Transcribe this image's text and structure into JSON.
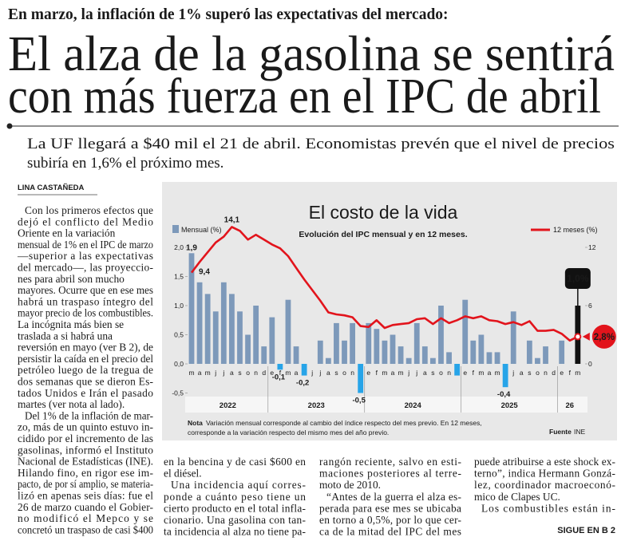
{
  "header": {
    "kicker": "En marzo, la inflación de 1% superó las expectativas del mercado:",
    "headline": [
      "El alza de la gasolina se sentirá",
      "con más fuerza en el IPC de abril"
    ],
    "deck": [
      "La UF llegará a $40 mil el 21 de abril. Economistas prevén que el nivel de precios",
      "subiría en 1,6% el próximo mes."
    ]
  },
  "byline": "LINA CASTAÑEDA",
  "columns": [
    [
      [
        "Con los primeros efectos que",
        "dejó el conflicto del Medio",
        "Oriente en la variación",
        "mensual de 1% en el IPC de marzo",
        "—superior a las expectativas",
        "del mercado—, las proyeccio-",
        "nes para abril son mucho",
        "mayores. Ocurre que en ese mes",
        "habrá un traspaso íntegro del",
        "mayor precio de los combustibles.",
        "La incógnita más bien se",
        "traslada a si habrá una",
        "reversión en mayo (ver B 2), de",
        "persistir la caída en el precio del",
        "petróleo luego de la tregua de",
        "dos semanas que se dieron Es-",
        "tados Unidos e Irán el pasado",
        "martes (ver nota al lado)."
      ],
      [
        "Del 1% de la inflación de mar-",
        "zo, más de un quinto estuvo in-",
        "cidido por el incremento de las",
        "gasolinas, informó el Instituto",
        "Nacional de Estadísticas (INE).",
        "Hilando fino, en rigor ese im-",
        "pacto, de por sí amplio, se materia-",
        "lizó en apenas seis días: fue el",
        "26 de marzo cuando el Gobier-",
        "no modificó el Mepco y se",
        "concretó un traspaso de casi $400"
      ]
    ],
    [
      [
        "en la bencina y de casi $600 en",
        "el diésel."
      ],
      [
        "Una incidencia aquí corres-",
        "ponde a cuánto peso tiene un",
        "cierto producto en el total infla-",
        "cionario. Una gasolina con tan-",
        "ta incidencia al alza no tiene pa-"
      ]
    ],
    [
      [
        "rangón reciente, salvo en esti-",
        "maciones posteriores al terre-",
        "moto de 2010."
      ],
      [
        "“Antes de la guerra el alza es-",
        "perada para ese mes se ubicaba",
        "en torno a 0,5%, por lo que cer-",
        "ca de la mitad del IPC del mes"
      ]
    ],
    [
      [
        "puede atribuirse a este shock ex-",
        "terno”, indica Hermann Gonzá-",
        "lez, coordinador macroeconó-",
        "mico de Clapes UC."
      ],
      [
        "Los combustibles están in-"
      ]
    ]
  ],
  "continued": "SIGUE EN B 2",
  "chart_data": {
    "type": "combo",
    "title": "El costo de la vida",
    "subtitle": "Evolución del IPC mensual y en 12 meses.",
    "categories": [
      "m",
      "a",
      "m",
      "j",
      "j",
      "a",
      "s",
      "o",
      "n",
      "d",
      "e",
      "f",
      "m",
      "a",
      "m",
      "j",
      "j",
      "a",
      "s",
      "o",
      "n",
      "d",
      "e",
      "f",
      "m",
      "a",
      "m",
      "j",
      "j",
      "a",
      "s",
      "o",
      "n",
      "d",
      "e",
      "f",
      "m",
      "a",
      "m",
      "j",
      "j",
      "a",
      "s",
      "o",
      "n",
      "d",
      "e",
      "f",
      "m"
    ],
    "years": [
      "2022",
      "2023",
      "2024",
      "2025",
      "26"
    ],
    "series": [
      {
        "name": "Mensual (%)",
        "color": "#7d99ba",
        "negative_color": "#27a4e8",
        "highlight_color": "#111111",
        "values": [
          1.9,
          1.4,
          1.2,
          0.9,
          1.4,
          1.2,
          0.9,
          0.5,
          1.0,
          0.3,
          0.8,
          -0.1,
          1.1,
          0.3,
          -0.2,
          0.0,
          0.4,
          0.1,
          0.7,
          0.4,
          0.7,
          -0.5,
          0.7,
          0.6,
          0.4,
          0.5,
          0.3,
          0.1,
          0.7,
          0.3,
          0.1,
          1.0,
          0.2,
          -0.2,
          1.1,
          0.4,
          0.5,
          0.2,
          0.2,
          -0.4,
          0.9,
          0.0,
          0.4,
          0.1,
          0.3,
          0.0,
          0.4,
          0.0,
          1.0
        ],
        "value_labels": [
          "1,9",
          null,
          null,
          null,
          null,
          null,
          null,
          null,
          null,
          null,
          null,
          "-0,1",
          null,
          null,
          "-0,2",
          null,
          null,
          null,
          null,
          null,
          null,
          "-0,5",
          null,
          null,
          null,
          null,
          null,
          null,
          null,
          null,
          null,
          null,
          null,
          null,
          null,
          null,
          null,
          null,
          null,
          "-0,4",
          null,
          null,
          null,
          null,
          null,
          null,
          null,
          null,
          "1,0%"
        ]
      },
      {
        "name": "12 meses (%)",
        "color": "#e2141c",
        "axis": "y2",
        "values": [
          9.4,
          10.5,
          11.5,
          12.5,
          13.1,
          14.1,
          13.7,
          12.8,
          13.3,
          12.8,
          12.3,
          11.9,
          11.1,
          9.9,
          8.7,
          7.6,
          6.5,
          5.3,
          5.1,
          5.0,
          4.8,
          3.9,
          3.8,
          4.5,
          3.7,
          4.0,
          4.1,
          4.2,
          4.6,
          4.7,
          4.1,
          4.7,
          4.2,
          4.5,
          4.9,
          4.7,
          4.9,
          4.5,
          4.4,
          4.1,
          4.3,
          4.0,
          4.4,
          3.4,
          3.4,
          3.5,
          3.1,
          2.4,
          2.8
        ],
        "value_labels": [
          "9,4",
          null,
          null,
          null,
          null,
          "14,1",
          null,
          null,
          null,
          null,
          null,
          null,
          null,
          null,
          null,
          null,
          null,
          null,
          null,
          null,
          null,
          null,
          null,
          null,
          null,
          null,
          null,
          null,
          null,
          null,
          null,
          null,
          null,
          null,
          null,
          null,
          null,
          null,
          null,
          null,
          null,
          null,
          null,
          null,
          null,
          null,
          null,
          null,
          "2,8%"
        ]
      }
    ],
    "ylim": [
      -0.5,
      2.0
    ],
    "yticks": [
      {
        "value": -0.5,
        "label": "-0,5"
      },
      {
        "value": 0,
        "label": "0,0"
      },
      {
        "value": 0.5,
        "label": "0,5"
      },
      {
        "value": 1,
        "label": "1,0"
      },
      {
        "value": 1.5,
        "label": "1,5"
      },
      {
        "value": 2,
        "label": "2,0"
      }
    ],
    "y2lim": [
      -3,
      12
    ],
    "y2ticks": [
      0,
      6,
      12
    ],
    "grid": false,
    "legend": "top",
    "note": {
      "label": "Nota",
      "lines": [
        "Variación mensual corresponde al cambio del índice respecto del mes previo. En 12 meses,",
        "corresponde a la variación respecto del mismo mes del año previo."
      ]
    },
    "source": {
      "label": "Fuente",
      "text": "INE"
    }
  }
}
